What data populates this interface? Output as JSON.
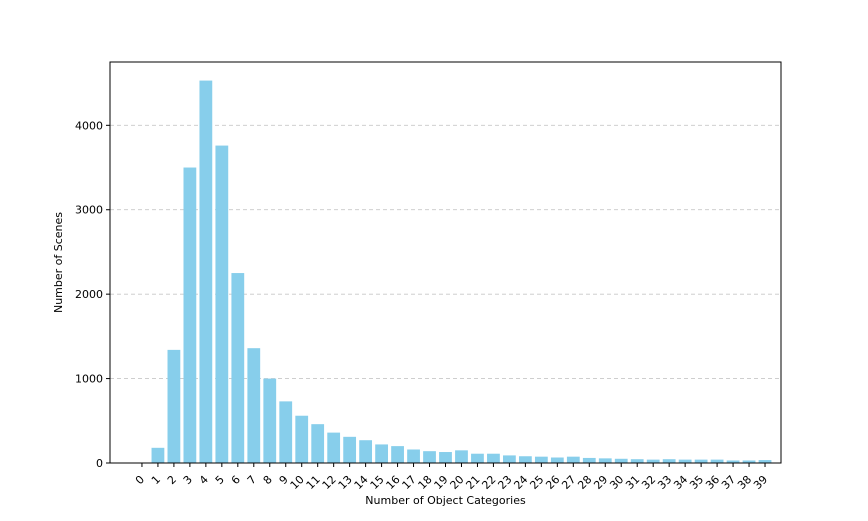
{
  "chart_data": {
    "type": "bar",
    "xlabel": "Number of Object Categories",
    "ylabel": "Number of Scenes",
    "categories": [
      "0",
      "1",
      "2",
      "3",
      "4",
      "5",
      "6",
      "7",
      "8",
      "9",
      "10",
      "11",
      "12",
      "13",
      "14",
      "15",
      "16",
      "17",
      "18",
      "19",
      "20",
      "21",
      "22",
      "23",
      "24",
      "25",
      "26",
      "27",
      "28",
      "29",
      "30",
      "31",
      "32",
      "33",
      "34",
      "35",
      "36",
      "37",
      "38",
      "39"
    ],
    "values": [
      0,
      180,
      1340,
      3500,
      4530,
      3760,
      2250,
      1360,
      1000,
      730,
      560,
      460,
      360,
      310,
      270,
      220,
      200,
      160,
      140,
      130,
      150,
      110,
      110,
      90,
      80,
      75,
      65,
      75,
      60,
      55,
      50,
      45,
      40,
      45,
      40,
      40,
      40,
      30,
      30,
      35
    ],
    "ylim": [
      0,
      4750
    ],
    "yticks": [
      0,
      1000,
      2000,
      3000,
      4000
    ],
    "grid": "y-dashed",
    "bar_color": "#87CEEB"
  }
}
